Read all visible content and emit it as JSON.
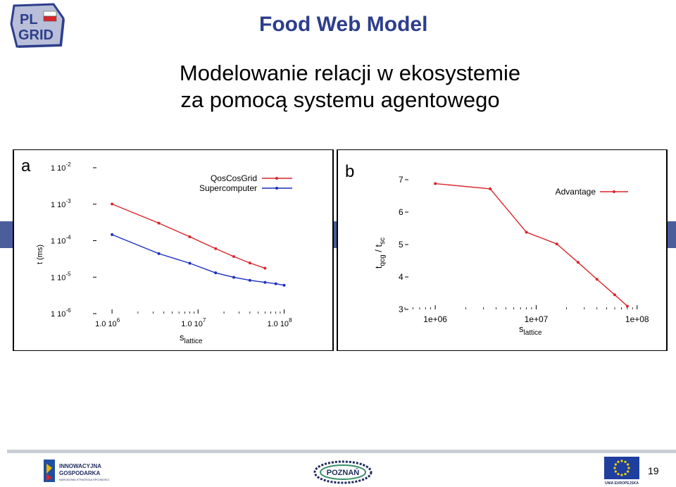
{
  "logo": {
    "line1": "PL",
    "line2": "GRID"
  },
  "header": {
    "title": "Food Web Model",
    "subtitle_line1": "Modelowanie relacji w ekosystemie",
    "subtitle_line2": "za pomocą systemu agentowego"
  },
  "colors": {
    "title": "#2d3e8c",
    "series_red": "#d9262c",
    "series_blue": "#1a2fbe"
  },
  "chart_data": [
    {
      "type": "line",
      "panel_label": "a",
      "x_scale": "log",
      "y_scale": "log",
      "xlim": [
        600000,
        150000000
      ],
      "ylim": [
        1e-06,
        0.01
      ],
      "x_ticks": [
        1000000,
        10000000,
        100000000
      ],
      "x_tick_labels": [
        {
          "base": "1.0 10",
          "exp": "6"
        },
        {
          "base": "1.0 10",
          "exp": "7"
        },
        {
          "base": "1.0 10",
          "exp": "8"
        }
      ],
      "y_ticks": [
        0.01,
        0.001,
        0.0001,
        1e-05,
        1e-06
      ],
      "y_tick_labels": [
        {
          "base": "1 10",
          "exp": "-2"
        },
        {
          "base": "1 10",
          "exp": "-3"
        },
        {
          "base": "1 10",
          "exp": "-4"
        },
        {
          "base": "1 10",
          "exp": "-5"
        },
        {
          "base": "1 10",
          "exp": "-6"
        }
      ],
      "xlabel": {
        "base": "s",
        "sub": "lattice"
      },
      "ylabel": "t (ms)",
      "legend_position": "top-right",
      "series": [
        {
          "name": "QosCosGrid",
          "color": "#d9262c",
          "x": [
            1000000,
            3500000,
            8000000,
            16000000,
            26000000,
            40000000,
            60000000
          ],
          "y": [
            0.00101,
            0.000302,
            0.000128,
            6.05e-05,
            3.67e-05,
            2.45e-05,
            1.76e-05
          ]
        },
        {
          "name": "Supercomputer",
          "color": "#1a2fbe",
          "x": [
            1000000,
            3500000,
            8000000,
            16000000,
            26000000,
            40000000,
            60000000,
            80000000,
            100000000
          ],
          "y": [
            0.000147,
            4.41e-05,
            2.41e-05,
            1.31e-05,
            9.9e-06,
            8.2e-06,
            7.2e-06,
            6.6e-06,
            6e-06
          ]
        }
      ]
    },
    {
      "type": "line",
      "panel_label": "b",
      "x_scale": "log",
      "y_scale": "linear",
      "xlim": [
        500000,
        150000000
      ],
      "ylim": [
        3,
        7
      ],
      "x_ticks": [
        1000000,
        10000000,
        100000000
      ],
      "x_tick_labels": [
        "1e+06",
        "1e+07",
        "1e+08"
      ],
      "y_ticks": [
        3,
        4,
        5,
        6,
        7
      ],
      "y_tick_labels": [
        "3",
        "4",
        "5",
        "6",
        "7"
      ],
      "xlabel": {
        "base": "s",
        "sub": "lattice"
      },
      "ylabel": {
        "t1": "t",
        "s1": "qcg",
        "mid": " / t",
        "s2": "sc"
      },
      "legend_position": "top-right",
      "series": [
        {
          "name": "Advantage",
          "color": "#d9262c",
          "x": [
            1000000,
            3500000,
            8000000,
            16000000,
            26000000,
            40000000,
            60000000,
            80000000
          ],
          "y": [
            6.88,
            6.72,
            5.38,
            5.02,
            4.45,
            3.93,
            3.45,
            3.1
          ]
        }
      ]
    }
  ],
  "footer": {
    "left_logo_line1": "INNOWACYJNA",
    "left_logo_line2": "GOSPODARKA",
    "left_logo_line3": "NARODOWA STRATEGIA SPÓJNOŚCI",
    "center_logo": "POZNAŃ",
    "right_logo": "UNIA EUROPEJSKA",
    "slide_number": "19"
  }
}
